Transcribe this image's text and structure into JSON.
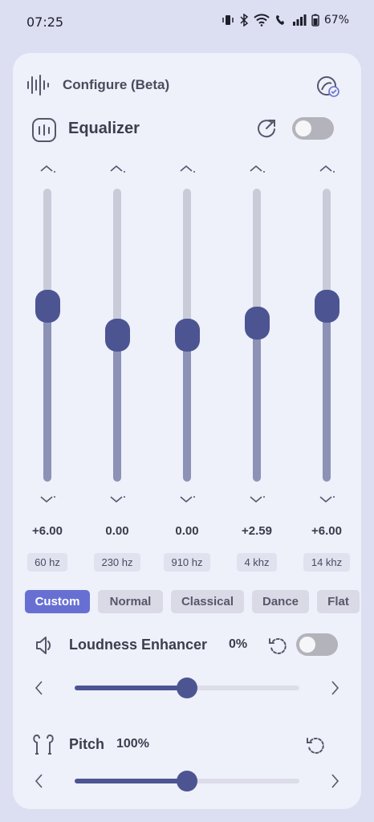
{
  "status": {
    "time": "07:25",
    "battery": "67%"
  },
  "configure": {
    "title": "Configure (Beta)"
  },
  "equalizer": {
    "title": "Equalizer",
    "enabled": false,
    "bands": [
      {
        "value": "+6.00",
        "freq": "60 hz",
        "level": 0.6
      },
      {
        "value": "0.00",
        "freq": "230 hz",
        "level": 0.5
      },
      {
        "value": "0.00",
        "freq": "910 hz",
        "level": 0.5
      },
      {
        "value": "+2.59",
        "freq": "4 khz",
        "level": 0.54
      },
      {
        "value": "+6.00",
        "freq": "14 khz",
        "level": 0.6
      }
    ],
    "presets": [
      "Custom",
      "Normal",
      "Classical",
      "Dance",
      "Flat"
    ],
    "active_preset": "Custom"
  },
  "loudness": {
    "title": "Loudness Enhancer",
    "value": "0%",
    "enabled": false,
    "level": 0.5
  },
  "pitch": {
    "title": "Pitch",
    "value": "100%",
    "level": 0.5
  },
  "colors": {
    "accent": "#4c5592",
    "chip_active": "#6770d2",
    "card": "#eef0fa",
    "background": "#dcdef2"
  }
}
